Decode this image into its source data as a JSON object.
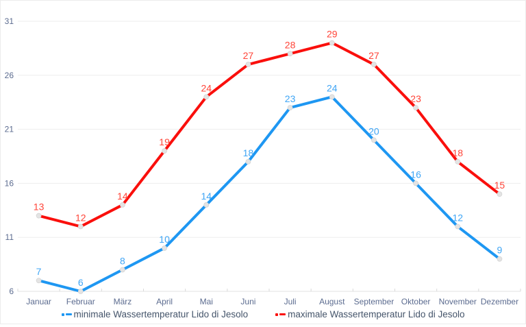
{
  "chart_data": {
    "type": "line",
    "title": "",
    "xlabel": "",
    "ylabel": "",
    "categories": [
      "Januar",
      "Februar",
      "März",
      "April",
      "Mai",
      "Juni",
      "Juli",
      "August",
      "September",
      "Oktober",
      "November",
      "Dezember"
    ],
    "series": [
      {
        "name": "minimale Wassertemperatur Lido di Jesolo",
        "values": [
          7,
          6,
          8,
          10,
          14,
          18,
          23,
          24,
          20,
          16,
          12,
          9
        ],
        "line_color": "#1e97f2",
        "label_color": "#3fa5f5"
      },
      {
        "name": "maximale Wassertemperatur Lido di Jesolo",
        "values": [
          13,
          12,
          14,
          19,
          24,
          27,
          28,
          29,
          27,
          23,
          18,
          15
        ],
        "line_color": "#fa0f0c",
        "label_color": "#ff4438"
      }
    ],
    "ylim": [
      6,
      31
    ],
    "yticks": [
      6,
      11,
      16,
      21,
      26,
      31
    ],
    "grid": true,
    "legend_position": "bottom",
    "marker": {
      "fill": "#e4e4e4",
      "stroke": "#d2d2d2"
    },
    "colors": {
      "gridline": "#ededed",
      "axis_line": "#e0e0e0",
      "tick": "#d9d9d9",
      "axis_label": "#5b6b8f",
      "legend_text": "#44546a",
      "frame_border": "#ececec",
      "background": "#ffffff"
    }
  }
}
